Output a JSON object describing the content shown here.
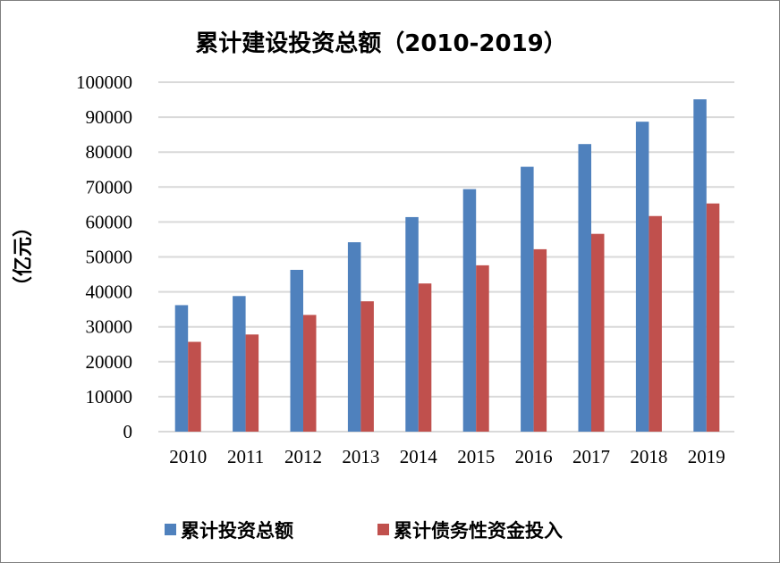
{
  "chart_data": {
    "type": "bar",
    "title": "累计建设投资总额（2010-2019）",
    "xlabel": "",
    "ylabel": "（亿元）",
    "ylim": [
      0,
      100000
    ],
    "yticks": [
      "0",
      "10000",
      "20000",
      "30000",
      "40000",
      "50000",
      "60000",
      "70000",
      "80000",
      "90000",
      "100000"
    ],
    "grid": true,
    "legend_position": "bottom",
    "categories": [
      "2010",
      "2011",
      "2012",
      "2013",
      "2014",
      "2015",
      "2016",
      "2017",
      "2018",
      "2019"
    ],
    "series": [
      {
        "name": "累计投资总额",
        "color": "#4f81bd",
        "values": [
          36200,
          38800,
          46300,
          54200,
          61400,
          69400,
          75800,
          82300,
          88700,
          95100
        ]
      },
      {
        "name": "累计债务性资金投入",
        "color": "#c0504d",
        "values": [
          25700,
          27800,
          33400,
          37300,
          42400,
          47600,
          52200,
          56600,
          61700,
          65300
        ]
      }
    ]
  }
}
